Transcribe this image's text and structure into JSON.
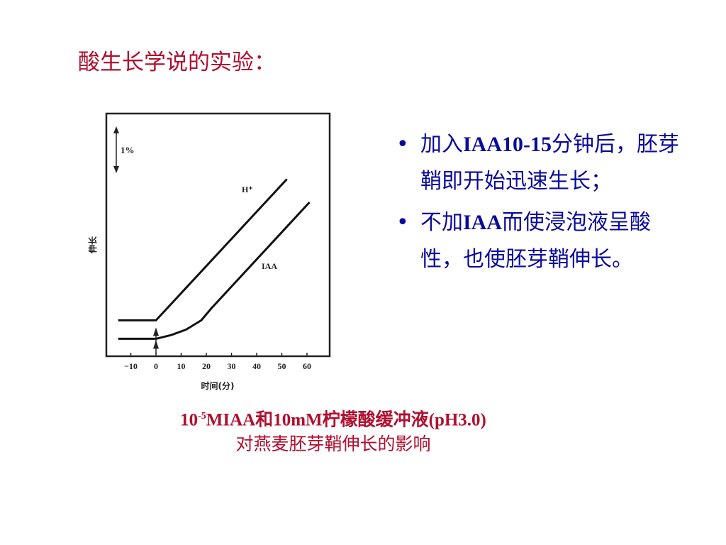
{
  "title": "酸生长学说的实验：",
  "chart_data": {
    "type": "line",
    "xlabel": "时间(分)",
    "ylabel": "伸长",
    "x_ticks": [
      "−10",
      "0",
      "10",
      "20",
      "30",
      "40",
      "50",
      "60"
    ],
    "xlim": [
      -15,
      65
    ],
    "scale_label": "1%",
    "series": [
      {
        "name": "H⁺",
        "x": [
          -15,
          0,
          52
        ],
        "y": [
          2.2,
          2.2,
          17.5
        ]
      },
      {
        "name": "IAA",
        "x": [
          -15,
          0,
          6,
          12,
          18,
          22,
          61
        ],
        "y": [
          0.2,
          0.2,
          0.6,
          1.2,
          2.2,
          3.5,
          15.0
        ]
      }
    ]
  },
  "bullets": [
    {
      "dot": "•",
      "a": "加入",
      "b": "IAA10-15",
      "c": "分钟后，胚芽鞘即开始迅速生长；"
    },
    {
      "dot": "•",
      "a": "不加",
      "b": "IAA",
      "c": "而使浸泡液呈酸性，也使胚芽鞘伸长。"
    }
  ],
  "caption": {
    "line1_a": "10",
    "line1_sup": "-5",
    "line1_b": "MIAA和10mM柠檬酸缓冲液(pH3.0)",
    "line2": "对燕麦胚芽鞘伸长的影响"
  },
  "colors": {
    "title": "#b01030",
    "bullet_text": "#0a0a9a",
    "caption": "#b01030"
  }
}
